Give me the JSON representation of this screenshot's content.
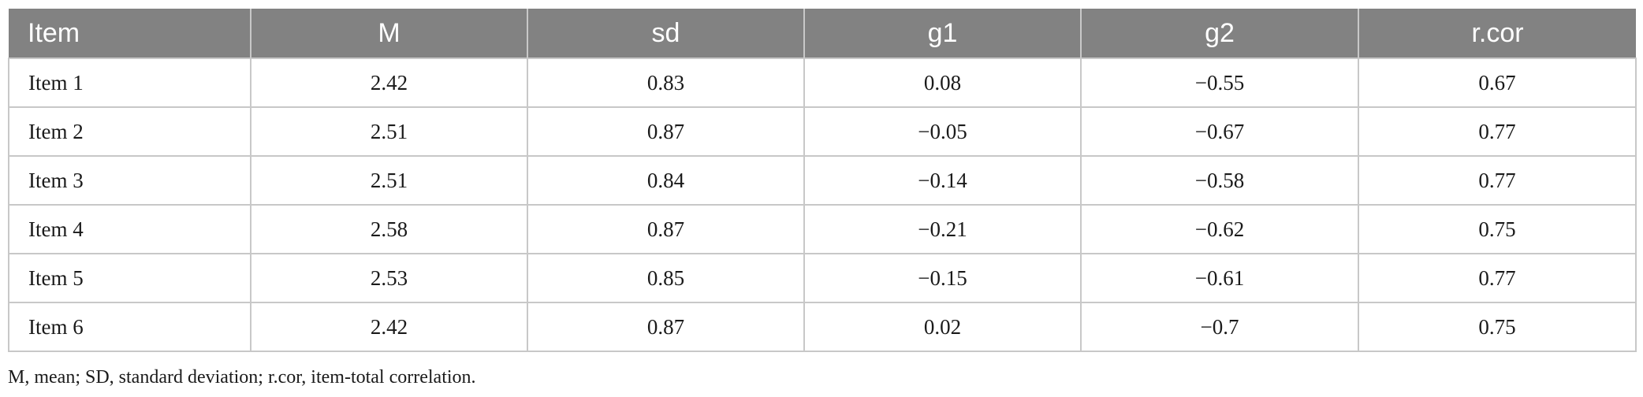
{
  "table": {
    "headers": [
      "Item",
      "M",
      "sd",
      "g1",
      "g2",
      "r.cor"
    ],
    "rows": [
      [
        "Item 1",
        "2.42",
        "0.83",
        "0.08",
        "−0.55",
        "0.67"
      ],
      [
        "Item 2",
        "2.51",
        "0.87",
        "−0.05",
        "−0.67",
        "0.77"
      ],
      [
        "Item 3",
        "2.51",
        "0.84",
        "−0.14",
        "−0.58",
        "0.77"
      ],
      [
        "Item 4",
        "2.58",
        "0.87",
        "−0.21",
        "−0.62",
        "0.75"
      ],
      [
        "Item 5",
        "2.53",
        "0.85",
        "−0.15",
        "−0.61",
        "0.77"
      ],
      [
        "Item 6",
        "2.42",
        "0.87",
        "0.02",
        "−0.7",
        "0.75"
      ]
    ]
  },
  "footnote": "M, mean; SD, standard deviation; r.cor, item-total correlation.",
  "colors": {
    "header_background": "#828282",
    "header_text": "#ffffff",
    "grid_lines": "#c8c8c8",
    "body_text": "#1a1a1a"
  }
}
